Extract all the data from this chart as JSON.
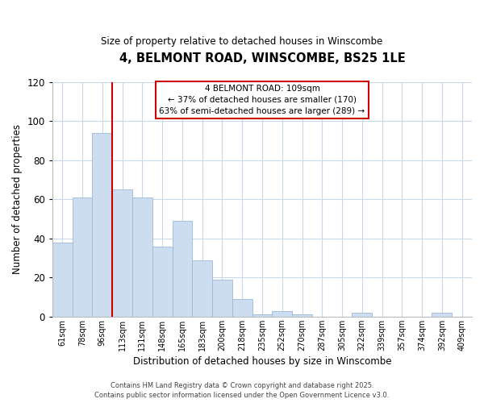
{
  "title": "4, BELMONT ROAD, WINSCOMBE, BS25 1LE",
  "subtitle": "Size of property relative to detached houses in Winscombe",
  "xlabel": "Distribution of detached houses by size in Winscombe",
  "ylabel": "Number of detached properties",
  "bar_color": "#ccddf0",
  "bar_edge_color": "#9ab8d8",
  "bin_labels": [
    "61sqm",
    "78sqm",
    "96sqm",
    "113sqm",
    "131sqm",
    "148sqm",
    "165sqm",
    "183sqm",
    "200sqm",
    "218sqm",
    "235sqm",
    "252sqm",
    "270sqm",
    "287sqm",
    "305sqm",
    "322sqm",
    "339sqm",
    "357sqm",
    "374sqm",
    "392sqm",
    "409sqm"
  ],
  "bar_heights": [
    38,
    61,
    94,
    65,
    61,
    36,
    49,
    29,
    19,
    9,
    1,
    3,
    1,
    0,
    0,
    2,
    0,
    0,
    0,
    2,
    0
  ],
  "vline_x": 2.5,
  "vline_color": "#cc0000",
  "ylim": [
    0,
    120
  ],
  "yticks": [
    0,
    20,
    40,
    60,
    80,
    100,
    120
  ],
  "annotation_title": "4 BELMONT ROAD: 109sqm",
  "annotation_line1": "← 37% of detached houses are smaller (170)",
  "annotation_line2": "63% of semi-detached houses are larger (289) →",
  "footer_line1": "Contains HM Land Registry data © Crown copyright and database right 2025.",
  "footer_line2": "Contains public sector information licensed under the Open Government Licence v3.0.",
  "background_color": "#ffffff",
  "grid_color": "#c8d8e8"
}
